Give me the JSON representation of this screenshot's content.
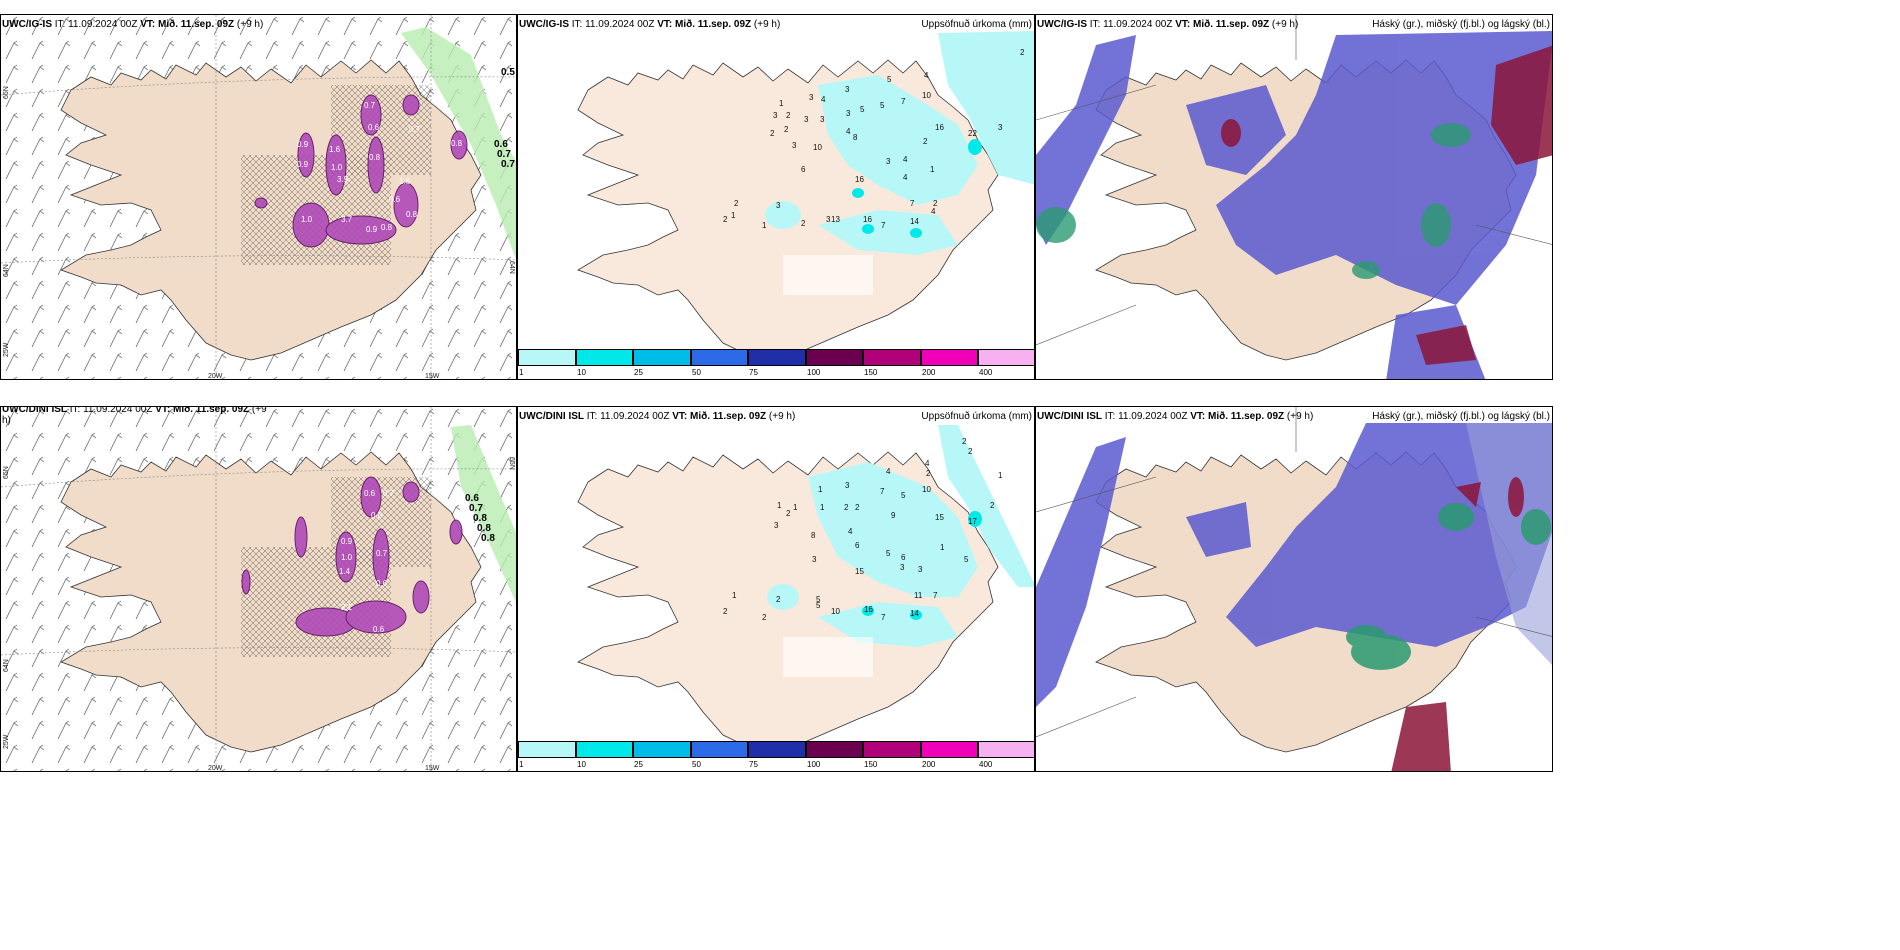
{
  "panels": {
    "p1": {
      "model": "UWC/IG-IS",
      "it": " IT: 11.09.2024 00Z ",
      "vt": "VT: Mið. 11.sep. 09Z",
      "lead": " (+9 h)"
    },
    "p2": {
      "model": "UWC/IG-IS",
      "it": " IT: 11.09.2024 00Z ",
      "vt": "VT: Mið. 11.sep. 09Z",
      "lead": " (+9 h)",
      "right_title": "Uppsöfnuð úrkoma (mm)"
    },
    "p3": {
      "model": "UWC/IG-IS",
      "it": " IT: 11.09.2024 00Z ",
      "vt": "VT: Mið. 11.sep. 09Z",
      "lead": " (+9 h)",
      "right_title": "Háský (gr.), miðský (fj.bl.) og lágský (bl.)"
    },
    "p4": {
      "model": "UWC/DINI ISL",
      "it": " IT: 11.09.2024 00Z ",
      "vt": "VT: Mið. 11.sep. 09Z",
      "lead": " (+9",
      "lead2": "h)"
    },
    "p5": {
      "model": "UWC/DINI ISL",
      "it": " IT: 11.09.2024 00Z ",
      "vt": "VT: Mið. 11.sep. 09Z",
      "lead": " (+9 h)",
      "right_title": "Uppsöfnuð úrkoma (mm)"
    },
    "p6": {
      "model": "UWC/DINI ISL",
      "it": " IT: 11.09.2024 00Z ",
      "vt": "VT: Mið. 11.sep. 09Z",
      "lead": " (+9 h)",
      "right_title": "Háský (gr.), miðský (fj.bl.) og lágský (bl.)"
    }
  },
  "axis_labels": {
    "lon_20w": "20W",
    "lon_15w": "15W",
    "lon_25w": "25W",
    "lat_65n": "65N",
    "lat_64n": "64N"
  },
  "colorbar": {
    "colors": [
      "#b7f7f7",
      "#00e8e8",
      "#00bde8",
      "#2d6ae8",
      "#1f2fa8",
      "#6b0050",
      "#b0007a",
      "#f000b8",
      "#f7b0f0"
    ],
    "ticks": [
      "1",
      "10",
      "25",
      "50",
      "75",
      "100",
      "150",
      "200",
      "400"
    ]
  },
  "top_precip_values": [
    "2",
    "1",
    "3",
    "4",
    "3",
    "5",
    "4",
    "5",
    "3",
    "5",
    "7",
    "10",
    "3",
    "2",
    "3",
    "2",
    "3",
    "2",
    "3",
    "8",
    "4",
    "10",
    "16",
    "2",
    "22",
    "3",
    "6",
    "4",
    "3",
    "4",
    "1",
    "16",
    "1",
    "2",
    "3",
    "2",
    "1",
    "2",
    "3",
    "2",
    "13",
    "16",
    "7",
    "7",
    "14",
    "4"
  ],
  "bottom_precip_values": [
    "2",
    "2",
    "1",
    "4",
    "2",
    "3",
    "7",
    "5",
    "4",
    "10",
    "1",
    "1",
    "2",
    "1",
    "3",
    "2",
    "1",
    "2",
    "9",
    "15",
    "2",
    "17",
    "8",
    "4",
    "6",
    "1",
    "5",
    "3",
    "3",
    "6",
    "5",
    "3",
    "15",
    "5",
    "11",
    "7",
    "1",
    "2",
    "2",
    "2",
    "5",
    "10",
    "16",
    "7",
    "14"
  ],
  "top_wind_values": [
    "0.5",
    "0.6",
    "0.7",
    "0.7"
  ],
  "bottom_wind_values": [
    "0.6",
    "0.7",
    "0.8",
    "0.8",
    "0.8"
  ],
  "top_purple_values": [
    "0.7",
    "0.9",
    "0.6",
    "0.7",
    "1.6",
    "0.9",
    "0.8",
    "1.0",
    "3.9",
    "1.6",
    "0.6",
    "3.7",
    "0.9",
    "1.0",
    "0.8",
    "0.8",
    "0.8"
  ],
  "bottom_purple_values": [
    "0.6",
    "0.7",
    "0.8",
    "0.9",
    "1.0",
    "1.4",
    "0.7",
    "0.6",
    "2.1",
    "0.6"
  ]
}
